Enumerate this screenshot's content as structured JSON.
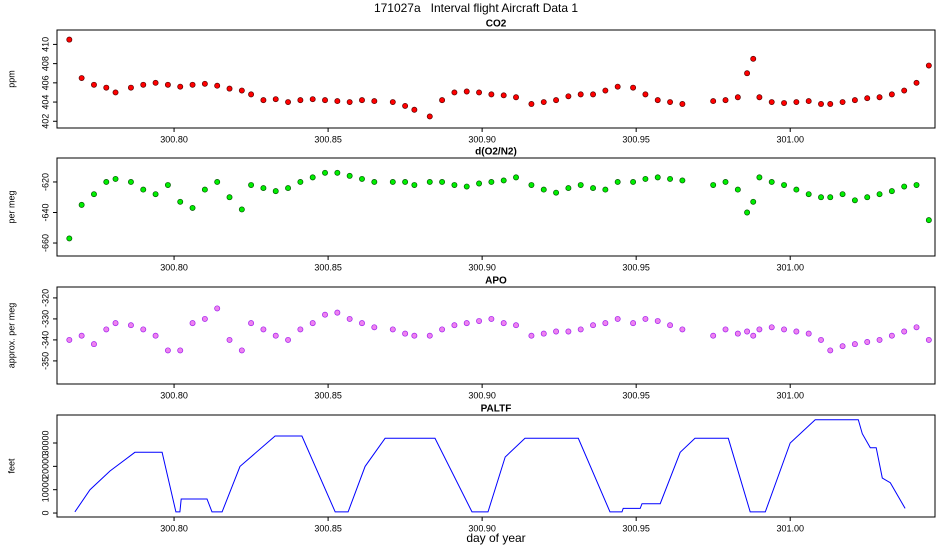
{
  "title": "171027a   Interval flight Aircraft Data 1",
  "chart_data": [
    {
      "type": "scatter",
      "title": "CO2",
      "ylabel": "ppm",
      "color": "#ff0000",
      "edgecolor": "#5a0000",
      "x": [
        300.766,
        300.77,
        300.774,
        300.778,
        300.781,
        300.786,
        300.79,
        300.794,
        300.798,
        300.802,
        300.806,
        300.81,
        300.814,
        300.818,
        300.822,
        300.825,
        300.829,
        300.833,
        300.837,
        300.841,
        300.845,
        300.849,
        300.853,
        300.857,
        300.861,
        300.865,
        300.871,
        300.875,
        300.878,
        300.883,
        300.887,
        300.891,
        300.895,
        300.899,
        300.903,
        300.907,
        300.911,
        300.916,
        300.92,
        300.924,
        300.928,
        300.932,
        300.936,
        300.94,
        300.944,
        300.949,
        300.953,
        300.957,
        300.961,
        300.965,
        300.975,
        300.979,
        300.983,
        300.986,
        300.988,
        300.99,
        300.994,
        300.998,
        301.002,
        301.006,
        301.01,
        301.013,
        301.017,
        301.021,
        301.025,
        301.029,
        301.033,
        301.037,
        301.041,
        301.045
      ],
      "values": [
        410.5,
        406.5,
        405.8,
        405.5,
        405.0,
        405.5,
        405.8,
        406.0,
        405.8,
        405.6,
        405.8,
        405.9,
        405.7,
        405.4,
        405.2,
        404.8,
        404.2,
        404.3,
        404.0,
        404.2,
        404.3,
        404.2,
        404.1,
        404.0,
        404.2,
        404.1,
        404.0,
        403.6,
        403.2,
        402.5,
        404.2,
        405.0,
        405.1,
        405.0,
        404.8,
        404.7,
        404.5,
        403.8,
        404.0,
        404.2,
        404.6,
        404.8,
        404.8,
        405.2,
        405.6,
        405.5,
        404.8,
        404.2,
        404.0,
        403.8,
        404.1,
        404.2,
        404.5,
        407.0,
        408.5,
        404.5,
        404.0,
        403.9,
        404.0,
        404.1,
        403.8,
        403.8,
        404.0,
        404.2,
        404.4,
        404.5,
        404.8,
        405.2,
        406.0,
        407.8
      ],
      "xlim": [
        300.762,
        301.047
      ],
      "ylim": [
        401.3,
        411.5
      ],
      "xticks": [
        {
          "value": 300.8,
          "label": "300.80"
        },
        {
          "value": 300.85,
          "label": "300.85"
        },
        {
          "value": 300.9,
          "label": "300.90"
        },
        {
          "value": 300.95,
          "label": "300.95"
        },
        {
          "value": 301.0,
          "label": "301.00"
        }
      ],
      "yticks": [
        402,
        404,
        406,
        408,
        410
      ]
    },
    {
      "type": "scatter",
      "title": "d(O2/N2)",
      "ylabel": "per meg",
      "color": "#00ee00",
      "edgecolor": "#005a00",
      "x": [
        300.766,
        300.77,
        300.774,
        300.778,
        300.781,
        300.786,
        300.79,
        300.794,
        300.798,
        300.802,
        300.806,
        300.81,
        300.814,
        300.818,
        300.822,
        300.825,
        300.829,
        300.833,
        300.837,
        300.841,
        300.845,
        300.849,
        300.853,
        300.857,
        300.861,
        300.865,
        300.871,
        300.875,
        300.878,
        300.883,
        300.887,
        300.891,
        300.895,
        300.899,
        300.903,
        300.907,
        300.911,
        300.916,
        300.92,
        300.924,
        300.928,
        300.932,
        300.936,
        300.94,
        300.944,
        300.949,
        300.953,
        300.957,
        300.961,
        300.965,
        300.975,
        300.979,
        300.983,
        300.986,
        300.988,
        300.99,
        300.994,
        300.998,
        301.002,
        301.006,
        301.01,
        301.013,
        301.017,
        301.021,
        301.025,
        301.029,
        301.033,
        301.037,
        301.041,
        301.045
      ],
      "values": [
        -657,
        -635,
        -628,
        -620,
        -618,
        -620,
        -625,
        -628,
        -622,
        -633,
        -637,
        -625,
        -620,
        -630,
        -638,
        -622,
        -624,
        -626,
        -624,
        -620,
        -617,
        -614,
        -614,
        -616,
        -618,
        -620,
        -620,
        -620,
        -622,
        -620,
        -620,
        -622,
        -623,
        -621,
        -620,
        -619,
        -617,
        -622,
        -625,
        -627,
        -624,
        -622,
        -624,
        -625,
        -620,
        -620,
        -618,
        -617,
        -618,
        -619,
        -622,
        -620,
        -625,
        -640,
        -633,
        -617,
        -620,
        -622,
        -625,
        -628,
        -630,
        -630,
        -628,
        -632,
        -630,
        -628,
        -626,
        -623,
        -622,
        -645
      ],
      "xlim": [
        300.762,
        301.047
      ],
      "ylim": [
        -668.5,
        -604.3
      ],
      "xticks": [
        {
          "value": 300.8,
          "label": "300.80"
        },
        {
          "value": 300.85,
          "label": "300.85"
        },
        {
          "value": 300.9,
          "label": "300.90"
        },
        {
          "value": 300.95,
          "label": "300.95"
        },
        {
          "value": 301.0,
          "label": "301.00"
        }
      ],
      "yticks": [
        -660,
        -640,
        -620
      ]
    },
    {
      "type": "scatter",
      "title": "APO",
      "ylabel": "approx. per meg",
      "color": "#ee82ee",
      "edgecolor": "#a020f0",
      "x": [
        300.766,
        300.77,
        300.774,
        300.778,
        300.781,
        300.786,
        300.79,
        300.794,
        300.798,
        300.802,
        300.806,
        300.81,
        300.814,
        300.818,
        300.822,
        300.825,
        300.829,
        300.833,
        300.837,
        300.841,
        300.845,
        300.849,
        300.853,
        300.857,
        300.861,
        300.865,
        300.871,
        300.875,
        300.878,
        300.883,
        300.887,
        300.891,
        300.895,
        300.899,
        300.903,
        300.907,
        300.911,
        300.916,
        300.92,
        300.924,
        300.928,
        300.932,
        300.936,
        300.94,
        300.944,
        300.949,
        300.953,
        300.957,
        300.961,
        300.965,
        300.975,
        300.979,
        300.983,
        300.986,
        300.988,
        300.99,
        300.994,
        300.998,
        301.002,
        301.006,
        301.01,
        301.013,
        301.017,
        301.021,
        301.025,
        301.029,
        301.033,
        301.037,
        301.041,
        301.045
      ],
      "values": [
        -340,
        -338,
        -342,
        -335,
        -332,
        -333,
        -335,
        -338,
        -345,
        -345,
        -332,
        -330,
        -325,
        -340,
        -345,
        -332,
        -335,
        -338,
        -340,
        -335,
        -332,
        -328,
        -327,
        -330,
        -332,
        -334,
        -335,
        -337,
        -338,
        -338,
        -335,
        -333,
        -332,
        -331,
        -330,
        -332,
        -333,
        -338,
        -337,
        -336,
        -336,
        -335,
        -333,
        -332,
        -330,
        -332,
        -330,
        -331,
        -333,
        -335,
        -338,
        -335,
        -337,
        -336,
        -338,
        -335,
        -334,
        -335,
        -336,
        -337,
        -340,
        -345,
        -343,
        -342,
        -341,
        -340,
        -338,
        -336,
        -334,
        -340
      ],
      "xlim": [
        300.762,
        301.047
      ],
      "ylim": [
        -361,
        -314.8
      ],
      "xticks": [
        {
          "value": 300.8,
          "label": "300.80"
        },
        {
          "value": 300.85,
          "label": "300.85"
        },
        {
          "value": 300.9,
          "label": "300.90"
        },
        {
          "value": 300.95,
          "label": "300.95"
        },
        {
          "value": 301.0,
          "label": "301.00"
        }
      ],
      "yticks": [
        -350,
        -340,
        -330,
        -320
      ]
    },
    {
      "type": "line",
      "title": "PALTF",
      "ylabel": "feet",
      "xlabel": "day of year",
      "color": "#0000ff",
      "x": [
        300.7678,
        300.7727,
        300.7792,
        300.7873,
        300.7961,
        300.8006,
        300.8019,
        300.8023,
        300.8107,
        300.8123,
        300.8156,
        300.8214,
        300.8328,
        300.8415,
        300.8523,
        300.8565,
        300.862,
        300.8685,
        300.8847,
        300.8967,
        300.9019,
        300.9075,
        300.9139,
        300.9312,
        300.9415,
        300.9454,
        300.9458,
        300.9513,
        300.9519,
        300.9578,
        300.9643,
        300.9691,
        300.9799,
        300.987,
        300.9919,
        301.0,
        301.0081,
        301.0221,
        301.0234,
        301.026,
        301.0279,
        301.0299,
        301.0325,
        301.0373
      ],
      "values": [
        500,
        10000,
        18000,
        26000,
        26000,
        500,
        500,
        6000,
        6000,
        500,
        500,
        20000,
        33000,
        33000,
        500,
        500,
        20000,
        32000,
        32000,
        500,
        500,
        24000,
        32000,
        32000,
        500,
        500,
        2000,
        2000,
        4000,
        4000,
        26000,
        32000,
        32000,
        500,
        500,
        30000,
        40000,
        40000,
        34000,
        28000,
        28000,
        15000,
        13000,
        2000
      ],
      "xlim": [
        300.762,
        301.047
      ],
      "ylim": [
        -1700,
        42000
      ],
      "xticks": [
        {
          "value": 300.8,
          "label": "300.80"
        },
        {
          "value": 300.85,
          "label": "300.85"
        },
        {
          "value": 300.9,
          "label": "300.90"
        },
        {
          "value": 300.95,
          "label": "300.95"
        },
        {
          "value": 301.0,
          "label": "301.00"
        }
      ],
      "yticks": [
        0,
        10000,
        20000,
        30000
      ]
    }
  ]
}
